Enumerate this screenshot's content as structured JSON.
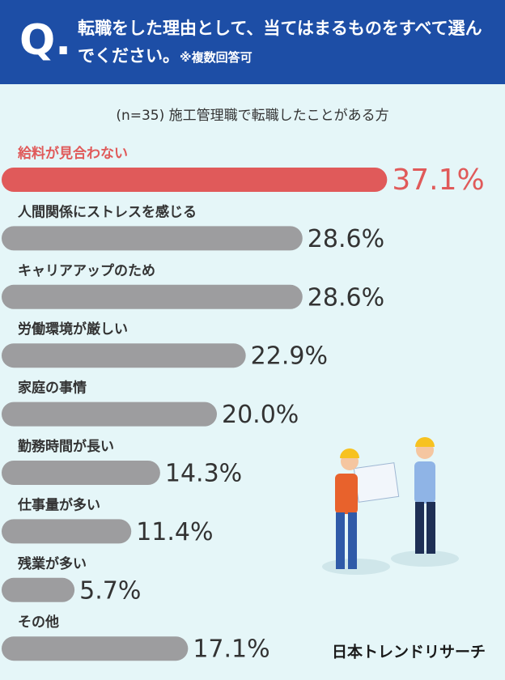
{
  "header": {
    "mark": "Q.",
    "title": "転職をした理由として、当てはまるものをすべて選んでください。",
    "note": "※複数回答可"
  },
  "chart_data": {
    "type": "bar",
    "orientation": "horizontal",
    "subtitle": "(n=35) 施工管理職で転職したことがある方",
    "categories": [
      "給料が見合わない",
      "人間関係にストレスを感じる",
      "キャリアアップのため",
      "労働環境が厳しい",
      "家庭の事情",
      "勤務時間が長い",
      "仕事量が多い",
      "残業が多い",
      "その他"
    ],
    "values": [
      37.1,
      28.6,
      28.6,
      22.9,
      20.0,
      14.3,
      11.4,
      5.7,
      17.1
    ],
    "value_labels": [
      "37.1%",
      "28.6%",
      "28.6%",
      "22.9%",
      "20.0%",
      "14.3%",
      "11.4%",
      "5.7%",
      "17.1%"
    ],
    "colors": [
      "#e05a5a",
      "#9d9d9f",
      "#9d9d9f",
      "#9d9d9f",
      "#9d9d9f",
      "#9d9d9f",
      "#9d9d9f",
      "#9d9d9f",
      "#9d9d9f"
    ]
  },
  "footer": {
    "brand": "日本トレンドリサーチ"
  }
}
